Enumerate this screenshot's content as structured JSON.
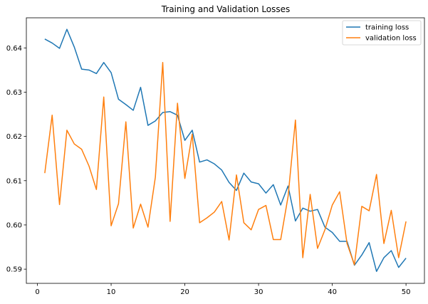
{
  "chart_data": {
    "type": "line",
    "title": "Training and Validation Losses",
    "xlabel": "",
    "ylabel": "",
    "xlim": [
      -1.5,
      52.5
    ],
    "ylim": [
      0.5868,
      0.6468
    ],
    "xticks": [
      0,
      10,
      20,
      30,
      40,
      50
    ],
    "yticks": [
      0.59,
      0.6,
      0.61,
      0.62,
      0.63,
      0.64
    ],
    "ytick_labels": [
      "0.59",
      "0.60",
      "0.61",
      "0.62",
      "0.63",
      "0.64"
    ],
    "grid": false,
    "legend_position": "top-right",
    "x": [
      1,
      2,
      3,
      4,
      5,
      6,
      7,
      8,
      9,
      10,
      11,
      12,
      13,
      14,
      15,
      16,
      17,
      18,
      19,
      20,
      21,
      22,
      23,
      24,
      25,
      26,
      27,
      28,
      29,
      30,
      31,
      32,
      33,
      34,
      35,
      36,
      37,
      38,
      39,
      40,
      41,
      42,
      43,
      44,
      45,
      46,
      47,
      48,
      49,
      50
    ],
    "series": [
      {
        "name": "training loss",
        "color": "#1f77b4",
        "values": [
          0.642,
          0.6411,
          0.6399,
          0.6442,
          0.6402,
          0.6352,
          0.635,
          0.6342,
          0.6367,
          0.6344,
          0.6284,
          0.6272,
          0.6259,
          0.6311,
          0.6225,
          0.6235,
          0.6254,
          0.6256,
          0.6248,
          0.6191,
          0.6214,
          0.6142,
          0.6147,
          0.6138,
          0.6124,
          0.6096,
          0.6078,
          0.6117,
          0.6097,
          0.6093,
          0.6072,
          0.6091,
          0.6045,
          0.6088,
          0.6009,
          0.6038,
          0.6031,
          0.6035,
          0.5995,
          0.5983,
          0.5963,
          0.5963,
          0.5909,
          0.5932,
          0.596,
          0.5895,
          0.5926,
          0.5942,
          0.5904,
          0.5925
        ]
      },
      {
        "name": "validation loss",
        "color": "#ff7f0e",
        "values": [
          0.6117,
          0.6248,
          0.6046,
          0.6214,
          0.6183,
          0.6171,
          0.6133,
          0.608,
          0.6289,
          0.5998,
          0.6048,
          0.6233,
          0.5993,
          0.6047,
          0.5995,
          0.6108,
          0.6367,
          0.6008,
          0.6275,
          0.6105,
          0.6205,
          0.6005,
          0.6016,
          0.6029,
          0.6053,
          0.5966,
          0.6113,
          0.6005,
          0.5989,
          0.6035,
          0.6044,
          0.5967,
          0.5967,
          0.6064,
          0.6237,
          0.5926,
          0.6069,
          0.5947,
          0.5989,
          0.6045,
          0.6075,
          0.5958,
          0.591,
          0.6042,
          0.6032,
          0.6114,
          0.5958,
          0.6033,
          0.5926,
          0.6008
        ]
      }
    ]
  }
}
